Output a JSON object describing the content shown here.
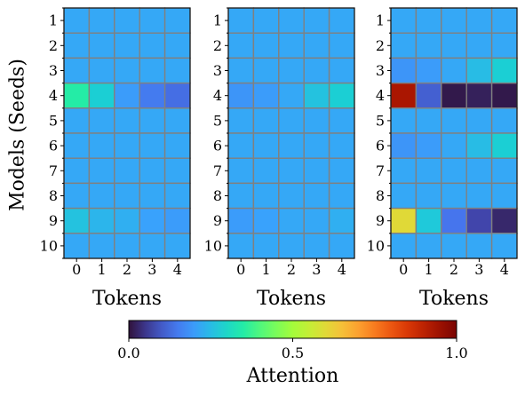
{
  "chart_data": {
    "type": "heatmap",
    "ylabel": "Models (Seeds)",
    "row_labels": [
      "1",
      "2",
      "3",
      "4",
      "5",
      "6",
      "7",
      "8",
      "9",
      "10"
    ],
    "colorscale": "turbo",
    "grid_color": "#808080",
    "panels": [
      {
        "xlabel": "Tokens",
        "col_labels": [
          "0",
          "1",
          "2",
          "3",
          "4"
        ],
        "values": [
          [
            0.22,
            0.22,
            0.22,
            0.22,
            0.22
          ],
          [
            0.22,
            0.22,
            0.22,
            0.22,
            0.22
          ],
          [
            0.22,
            0.22,
            0.22,
            0.22,
            0.22
          ],
          [
            0.35,
            0.28,
            0.2,
            0.15,
            0.13
          ],
          [
            0.22,
            0.22,
            0.22,
            0.22,
            0.22
          ],
          [
            0.22,
            0.22,
            0.22,
            0.22,
            0.22
          ],
          [
            0.22,
            0.22,
            0.22,
            0.22,
            0.22
          ],
          [
            0.22,
            0.22,
            0.22,
            0.22,
            0.22
          ],
          [
            0.26,
            0.24,
            0.23,
            0.21,
            0.2
          ],
          [
            0.22,
            0.22,
            0.22,
            0.22,
            0.22
          ]
        ]
      },
      {
        "xlabel": "Tokens",
        "col_labels": [
          "0",
          "1",
          "2",
          "3",
          "4"
        ],
        "values": [
          [
            0.22,
            0.22,
            0.22,
            0.22,
            0.22
          ],
          [
            0.22,
            0.22,
            0.22,
            0.22,
            0.22
          ],
          [
            0.22,
            0.22,
            0.22,
            0.22,
            0.22
          ],
          [
            0.19,
            0.2,
            0.22,
            0.26,
            0.28
          ],
          [
            0.22,
            0.22,
            0.22,
            0.22,
            0.22
          ],
          [
            0.22,
            0.22,
            0.22,
            0.22,
            0.22
          ],
          [
            0.22,
            0.22,
            0.22,
            0.22,
            0.22
          ],
          [
            0.22,
            0.22,
            0.22,
            0.22,
            0.22
          ],
          [
            0.2,
            0.21,
            0.22,
            0.22,
            0.23
          ],
          [
            0.22,
            0.22,
            0.22,
            0.22,
            0.22
          ]
        ]
      },
      {
        "xlabel": "Tokens",
        "col_labels": [
          "0",
          "1",
          "2",
          "3",
          "4"
        ],
        "values": [
          [
            0.22,
            0.22,
            0.22,
            0.22,
            0.22
          ],
          [
            0.22,
            0.22,
            0.22,
            0.22,
            0.22
          ],
          [
            0.19,
            0.2,
            0.22,
            0.25,
            0.28
          ],
          [
            0.93,
            0.11,
            0.01,
            0.02,
            0.01
          ],
          [
            0.22,
            0.22,
            0.22,
            0.22,
            0.22
          ],
          [
            0.19,
            0.2,
            0.22,
            0.25,
            0.28
          ],
          [
            0.22,
            0.22,
            0.22,
            0.22,
            0.22
          ],
          [
            0.22,
            0.22,
            0.22,
            0.22,
            0.22
          ],
          [
            0.6,
            0.27,
            0.14,
            0.07,
            0.03
          ],
          [
            0.22,
            0.22,
            0.22,
            0.22,
            0.22
          ]
        ]
      }
    ],
    "colorbar": {
      "label": "Attention",
      "range": [
        0,
        1
      ],
      "ticks": [
        "0.0",
        "0.5",
        "1.0"
      ],
      "tick_values": [
        0,
        0.5,
        1
      ]
    }
  }
}
